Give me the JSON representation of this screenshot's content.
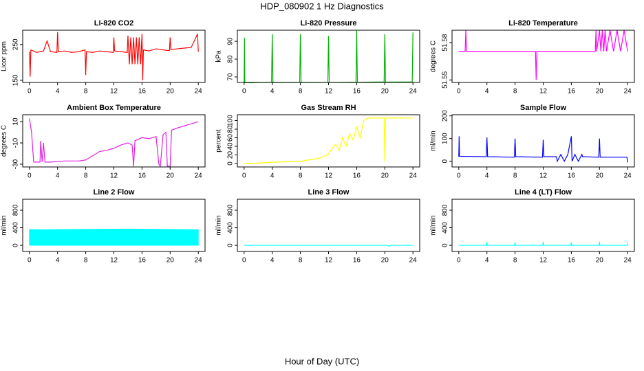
{
  "title": "HDP_080902  1 Hz Diagnostics",
  "xlabel": "Hour of Day (UTC)",
  "chart_data": [
    {
      "type": "line",
      "title": "Li-820 CO2",
      "ylabel": "Licor ppm",
      "color": "#ff0000",
      "xlim": [
        -0.96,
        24.96
      ],
      "xticks": [
        0,
        4,
        8,
        12,
        16,
        20,
        24
      ],
      "ylim": [
        144,
        290
      ],
      "yticks": [
        150,
        250
      ],
      "x": [
        0,
        0.1,
        0.2,
        1,
        2,
        2.5,
        3,
        3.9,
        4,
        4.1,
        5,
        6,
        7,
        7.9,
        8,
        8.1,
        9,
        10,
        11,
        11.9,
        12,
        12.1,
        13,
        13.9,
        14,
        14.2,
        14.4,
        14.6,
        14.8,
        15,
        15.2,
        15.4,
        15.6,
        15.8,
        16,
        16.1,
        16.2,
        17,
        18,
        19,
        19.9,
        20,
        20.1,
        21,
        22,
        23,
        23.9,
        24
      ],
      "values": [
        230,
        160,
        235,
        228,
        232,
        260,
        230,
        228,
        285,
        230,
        232,
        228,
        230,
        235,
        165,
        230,
        228,
        232,
        230,
        228,
        270,
        232,
        230,
        228,
        275,
        195,
        270,
        195,
        270,
        195,
        270,
        195,
        270,
        195,
        280,
        150,
        235,
        232,
        238,
        235,
        233,
        270,
        236,
        238,
        240,
        242,
        280,
        230
      ]
    },
    {
      "type": "line",
      "title": "Li-820 Pressure",
      "ylabel": "kPa",
      "color": "#00b000",
      "xlim": [
        -0.96,
        24.96
      ],
      "xticks": [
        0,
        4,
        8,
        12,
        16,
        20,
        24
      ],
      "ylim": [
        66.9,
        96.2
      ],
      "yticks": [
        70,
        80,
        90
      ],
      "x": [
        0,
        0.05,
        0.1,
        1,
        3.9,
        4,
        4.1,
        7.9,
        8,
        8.1,
        11.9,
        12,
        12.1,
        15.9,
        16,
        16.1,
        19.9,
        20,
        20.1,
        23.9,
        24
      ],
      "values": [
        67,
        92,
        66.8,
        66.7,
        67,
        94,
        66.8,
        67,
        94,
        66.8,
        67,
        93,
        66.9,
        67.1,
        96,
        67,
        67.2,
        94,
        67.1,
        67.2,
        95
      ]
    },
    {
      "type": "line",
      "title": "Li-820 Temperature",
      "ylabel": "degrees C",
      "color": "#ff00ff",
      "xlim": [
        -0.96,
        24.96
      ],
      "xticks": [
        0,
        4,
        8,
        12,
        16,
        20,
        24
      ],
      "ylim": [
        51.548,
        51.59
      ],
      "yticks": [
        51.55,
        51.58
      ],
      "x": [
        0,
        0.9,
        1,
        1.1,
        10.9,
        11,
        11.1,
        19.4,
        19.5,
        19.6,
        20,
        20.2,
        20.4,
        20.6,
        20.8,
        21,
        21.5,
        22,
        22.5,
        23,
        23.5,
        24
      ],
      "values": [
        51.573,
        51.573,
        51.59,
        51.573,
        51.573,
        51.55,
        51.573,
        51.573,
        51.59,
        51.573,
        51.59,
        51.573,
        51.59,
        51.573,
        51.59,
        51.573,
        51.59,
        51.573,
        51.59,
        51.573,
        51.59,
        51.573
      ]
    },
    {
      "type": "line",
      "title": "Ambient Box Temperature",
      "ylabel": "degrees C",
      "color": "#e020e0",
      "xlim": [
        -0.96,
        24.96
      ],
      "xticks": [
        0,
        4,
        8,
        12,
        16,
        20,
        24
      ],
      "ylim": [
        -32.6,
        16.5
      ],
      "yticks": [
        -30,
        -10,
        10
      ],
      "x": [
        0,
        0.3,
        0.6,
        1,
        1.5,
        1.6,
        1.8,
        2,
        2.2,
        3,
        5,
        7,
        8,
        9,
        10,
        11,
        12,
        13,
        14,
        14.6,
        14.8,
        15,
        16,
        17,
        18,
        18.4,
        18.6,
        19,
        19.4,
        19.6,
        20,
        20.2,
        21,
        22,
        23,
        24
      ],
      "values": [
        13,
        0,
        -28,
        -28,
        -28,
        -8,
        -28,
        -10,
        -28,
        -28,
        -27,
        -27,
        -26,
        -22,
        -18,
        -17,
        -15,
        -12,
        -10,
        -12,
        -32,
        -8,
        -5,
        -6,
        -4,
        -30,
        -32,
        -2,
        0,
        -32,
        -32,
        2,
        4,
        6,
        8,
        10
      ]
    },
    {
      "type": "line",
      "title": "Gas Stream RH",
      "ylabel": "percent",
      "color": "#ffff00",
      "xlim": [
        -0.96,
        24.96
      ],
      "xticks": [
        0,
        4,
        8,
        12,
        16,
        20,
        24
      ],
      "ylim": [
        -8,
        113.6
      ],
      "yticks": [
        0,
        20,
        40,
        60,
        80,
        100
      ],
      "x": [
        0,
        2,
        4,
        6,
        8,
        9,
        10,
        11,
        12,
        12.5,
        13,
        13.5,
        14,
        14.5,
        15,
        15.5,
        16,
        16.5,
        17,
        17.5,
        18,
        19,
        19.9,
        20,
        20.1,
        22,
        24
      ],
      "values": [
        0,
        1,
        3,
        4,
        5,
        8,
        10,
        14,
        22,
        35,
        45,
        30,
        60,
        40,
        70,
        55,
        85,
        60,
        100,
        105,
        106,
        106,
        106,
        5,
        106,
        106,
        106
      ]
    },
    {
      "type": "line",
      "title": "Sample Flow",
      "ylabel": "ml/min",
      "color": "#0000ff",
      "xlim": [
        -0.96,
        24.96
      ],
      "xticks": [
        0,
        4,
        8,
        12,
        16,
        20,
        24
      ],
      "ylim": [
        -25,
        205
      ],
      "yticks": [
        0,
        100,
        200
      ],
      "x": [
        0,
        0.05,
        0.1,
        3.9,
        4,
        4.1,
        7.9,
        8,
        8.1,
        11.9,
        12,
        12.1,
        13.9,
        14,
        14.5,
        15,
        15.5,
        16,
        16.1,
        16.5,
        17,
        17.5,
        17.6,
        19.9,
        20,
        20.1,
        23.9,
        24
      ],
      "values": [
        20,
        110,
        22,
        20,
        105,
        20,
        18,
        100,
        20,
        18,
        95,
        20,
        20,
        0,
        30,
        0,
        30,
        110,
        0,
        30,
        0,
        30,
        20,
        18,
        100,
        18,
        18,
        -5
      ]
    },
    {
      "type": "area",
      "title": "Line 2 Flow",
      "ylabel": "ml/min",
      "color": "#00ffff",
      "xlim": [
        -0.96,
        24.96
      ],
      "xticks": [
        0,
        4,
        8,
        12,
        16,
        20,
        24
      ],
      "ylim": [
        -140,
        1050
      ],
      "yticks": [
        0,
        400,
        800
      ],
      "x": [
        0,
        2,
        4,
        6,
        8,
        10,
        12,
        14,
        16,
        18,
        20,
        22,
        24
      ],
      "values": [
        360,
        355,
        360,
        362,
        365,
        366,
        368,
        370,
        368,
        365,
        362,
        360,
        358
      ]
    },
    {
      "type": "line",
      "title": "Line 3 Flow",
      "ylabel": "ml/min",
      "color": "#00ffff",
      "xlim": [
        -0.96,
        24.96
      ],
      "xticks": [
        0,
        4,
        8,
        12,
        16,
        20,
        24
      ],
      "ylim": [
        -140,
        1050
      ],
      "yticks": [
        0,
        400,
        800
      ],
      "x": [
        0,
        20.3,
        20.6,
        20.9,
        24
      ],
      "values": [
        0,
        0,
        -20,
        0,
        0
      ]
    },
    {
      "type": "line",
      "title": "Line 4 (LT) Flow",
      "ylabel": "ml/min",
      "color": "#00ffff",
      "xlim": [
        -0.96,
        24.96
      ],
      "xticks": [
        0,
        4,
        8,
        12,
        16,
        20,
        24
      ],
      "ylim": [
        -140,
        1050
      ],
      "yticks": [
        0,
        400,
        800
      ],
      "x": [
        0,
        3.95,
        4,
        4.05,
        7.95,
        8,
        8.05,
        11.95,
        12,
        12.05,
        15.95,
        16,
        16.05,
        19.95,
        20,
        20.05,
        23.95,
        24
      ],
      "values": [
        0,
        0,
        80,
        0,
        0,
        70,
        0,
        0,
        80,
        0,
        0,
        70,
        0,
        0,
        80,
        0,
        0,
        70
      ]
    }
  ]
}
